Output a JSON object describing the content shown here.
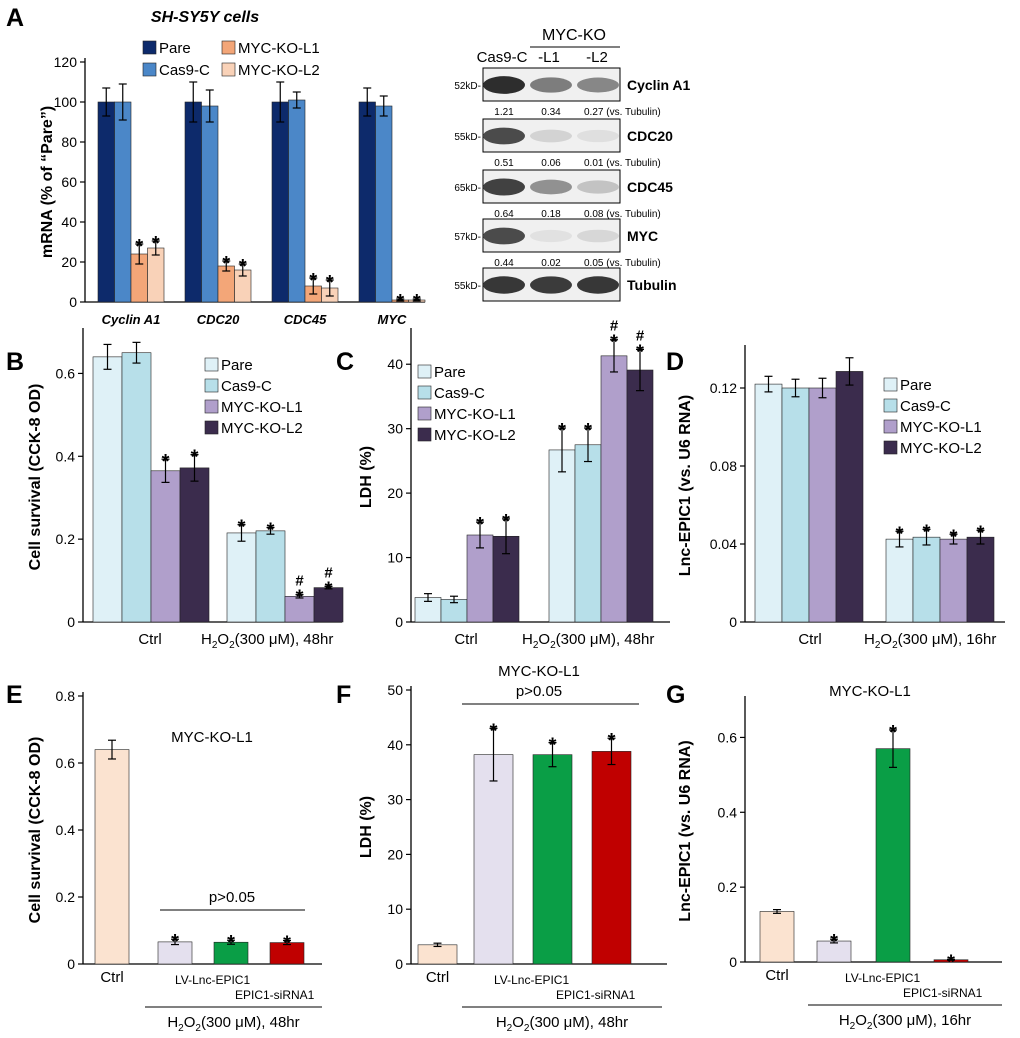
{
  "colors": {
    "pare_dark": "#0d2a6b",
    "cas9_blue": "#4b87c8",
    "ko_l1_orange": "#f3a678",
    "ko_l2_peach": "#f9d2b8",
    "pare_light": "#dff1f7",
    "cas9_light": "#b7dfe9",
    "ko_l1_purple": "#b09fcb",
    "ko_l2_darkpurple": "#3b2c4d",
    "ctrl_peach": "#fbe3d0",
    "lavender": "#e4e0ee",
    "green": "#0a9e46",
    "red": "#c00000",
    "label_red": "#cc1111",
    "label_green": "#13a040"
  },
  "chart_data": [
    {
      "panel": "A",
      "type": "bar",
      "title": "SH-SY5Y cells",
      "ylabel": "mRNA (% of “Pare”)",
      "ylim": [
        0,
        120
      ],
      "yticks": [
        0,
        20,
        40,
        60,
        80,
        100,
        120
      ],
      "categories": [
        "Cyclin A1",
        "CDC20",
        "CDC45",
        "MYC"
      ],
      "series": [
        {
          "name": "Pare",
          "values": [
            100,
            100,
            100,
            100
          ],
          "errors": [
            7,
            10,
            10,
            7
          ]
        },
        {
          "name": "Cas9-C",
          "values": [
            100,
            98,
            101,
            98
          ],
          "errors": [
            9,
            8,
            4,
            5
          ]
        },
        {
          "name": "MYC-KO-L1",
          "values": [
            24,
            18,
            8,
            1
          ],
          "errors": [
            5,
            2.5,
            4,
            0.5
          ]
        },
        {
          "name": "MYC-KO-L2",
          "values": [
            27,
            16,
            7,
            1
          ],
          "errors": [
            3.5,
            3,
            4,
            0.5
          ]
        }
      ],
      "star_marker": "*"
    },
    {
      "panel": "B",
      "type": "bar",
      "ylabel": "Cell survival (CCK-8 OD)",
      "ylim": [
        0,
        0.7
      ],
      "yticks": [
        0,
        0.2,
        0.4,
        0.6
      ],
      "ytick_labels": [
        "0",
        "0.2",
        "0.4",
        "0.6"
      ],
      "groups": [
        "Ctrl",
        "H2O2(300 μM), 48hr"
      ],
      "series": [
        {
          "name": "Pare",
          "values": [
            0.64,
            0.215
          ],
          "errors": [
            0.03,
            0.02
          ]
        },
        {
          "name": "Cas9-C",
          "values": [
            0.65,
            0.22
          ],
          "errors": [
            0.025,
            0.008
          ]
        },
        {
          "name": "MYC-KO-L1",
          "values": [
            0.365,
            0.062
          ],
          "errors": [
            0.028,
            0.004
          ]
        },
        {
          "name": "MYC-KO-L2",
          "values": [
            0.372,
            0.083
          ],
          "errors": [
            0.032,
            0.003
          ]
        }
      ],
      "star_marker": "*",
      "hash_marker": "#"
    },
    {
      "panel": "C",
      "type": "bar",
      "ylabel": "LDH (%)",
      "ylim": [
        0,
        45
      ],
      "yticks": [
        0,
        10,
        20,
        30,
        40
      ],
      "ytick_labels": [
        "0",
        "10",
        "20",
        "30",
        "40"
      ],
      "groups": [
        "Ctrl",
        "H2O2(300 μM), 48hr"
      ],
      "series": [
        {
          "name": "Pare",
          "values": [
            3.8,
            26.7
          ],
          "errors": [
            0.6,
            3.4
          ]
        },
        {
          "name": "Cas9-C",
          "values": [
            3.5,
            27.5
          ],
          "errors": [
            0.5,
            2.6
          ]
        },
        {
          "name": "MYC-KO-L1",
          "values": [
            13.5,
            41.3
          ],
          "errors": [
            2.0,
            2.5
          ]
        },
        {
          "name": "MYC-KO-L2",
          "values": [
            13.3,
            39.1
          ],
          "errors": [
            2.7,
            3.2
          ]
        }
      ],
      "star_marker": "*",
      "hash_marker": "#"
    },
    {
      "panel": "D",
      "type": "bar",
      "ylabel": "Lnc-EPIC1 (vs. U6 RNA)",
      "ylim": [
        0,
        0.14
      ],
      "yticks": [
        0,
        0.04,
        0.08,
        0.12
      ],
      "ytick_labels": [
        "0",
        "0.04",
        "0.08",
        "0.12"
      ],
      "groups": [
        "Ctrl",
        "H2O2(300 μM), 16hr"
      ],
      "series": [
        {
          "name": "Pare",
          "values": [
            0.122,
            0.0425
          ],
          "errors": [
            0.004,
            0.004
          ]
        },
        {
          "name": "Cas9-C",
          "values": [
            0.12,
            0.0435
          ],
          "errors": [
            0.0045,
            0.004
          ]
        },
        {
          "name": "MYC-KO-L1",
          "values": [
            0.12,
            0.0425
          ],
          "errors": [
            0.005,
            0.0025
          ]
        },
        {
          "name": "MYC-KO-L2",
          "values": [
            0.1285,
            0.0435
          ],
          "errors": [
            0.007,
            0.0035
          ]
        }
      ],
      "star_marker": "*"
    },
    {
      "panel": "E",
      "type": "bar",
      "title": "MYC-KO-L1",
      "ylabel": "Cell survival (CCK-8 OD)",
      "ylim": [
        0,
        0.8
      ],
      "yticks": [
        0,
        0.2,
        0.4,
        0.6,
        0.8
      ],
      "ytick_labels": [
        "0",
        "0.2",
        "0.4",
        "0.6",
        "0.8"
      ],
      "categories": [
        "Ctrl",
        "H2O2",
        "LV-Lnc-EPIC1",
        "EPIC1-siRNA1"
      ],
      "values": [
        0.64,
        0.066,
        0.065,
        0.064
      ],
      "errors": [
        0.028,
        0.008,
        0.006,
        0.006
      ],
      "stars": [
        false,
        true,
        true,
        true
      ],
      "comparison": "p>0.05",
      "treatment": "H2O2(300 μM), 48hr"
    },
    {
      "panel": "F",
      "type": "bar",
      "title": "MYC-KO-L1",
      "ylabel": "LDH (%)",
      "ylim": [
        0,
        50
      ],
      "yticks": [
        0,
        10,
        20,
        30,
        40,
        50
      ],
      "ytick_labels": [
        "0",
        "10",
        "20",
        "30",
        "40",
        "50"
      ],
      "categories": [
        "Ctrl",
        "H2O2",
        "LV-Lnc-EPIC1",
        "EPIC1-siRNA1"
      ],
      "values": [
        3.5,
        38.2,
        38.2,
        38.8
      ],
      "errors": [
        0.3,
        4.8,
        2.2,
        2.4
      ],
      "stars": [
        false,
        true,
        true,
        true
      ],
      "comparison": "p>0.05",
      "treatment": "H2O2(300 μM), 48hr"
    },
    {
      "panel": "G",
      "type": "bar",
      "title": "MYC-KO-L1",
      "ylabel": "Lnc-EPIC1 (vs. U6 RNA)",
      "ylim": [
        0,
        0.7
      ],
      "yticks": [
        0,
        0.2,
        0.4,
        0.6
      ],
      "ytick_labels": [
        "0",
        "0.2",
        "0.4",
        "0.6"
      ],
      "categories": [
        "Ctrl",
        "H2O2",
        "LV-Lnc-EPIC1",
        "EPIC1-siRNA1"
      ],
      "values": [
        0.135,
        0.056,
        0.57,
        0.006
      ],
      "errors": [
        0.005,
        0.005,
        0.05,
        0.001
      ],
      "stars": [
        false,
        true,
        true,
        true
      ],
      "treatment": "H2O2(300 μM), 16hr"
    }
  ],
  "blot": {
    "header": "MYC-KO",
    "lanes": [
      "Cas9-C",
      "-L1",
      "-L2"
    ],
    "tubulin_suffix": "(vs. Tubulin)",
    "rows": [
      {
        "name": "Cyclin A1",
        "kd": "52kD-",
        "quant": [
          "1.21",
          "0.34",
          "0.27"
        ],
        "intensity": [
          0.95,
          0.55,
          0.5
        ]
      },
      {
        "name": "CDC20",
        "kd": "55kD-",
        "quant": [
          "0.51",
          "0.06",
          "0.01"
        ],
        "intensity": [
          0.8,
          0.12,
          0.06
        ]
      },
      {
        "name": "CDC45",
        "kd": "65kD-",
        "quant": [
          "0.64",
          "0.18",
          "0.08"
        ],
        "intensity": [
          0.85,
          0.45,
          0.2
        ]
      },
      {
        "name": "MYC",
        "kd": "57kD-",
        "quant": [
          "0.44",
          "0.02",
          "0.05"
        ],
        "intensity": [
          0.8,
          0.05,
          0.1
        ]
      },
      {
        "name": "Tubulin",
        "kd": "55kD-",
        "quant": [],
        "intensity": [
          0.9,
          0.88,
          0.9
        ]
      }
    ]
  },
  "panel_labels": [
    "A",
    "B",
    "C",
    "D",
    "E",
    "F",
    "G"
  ],
  "treatment_labels": {
    "lv": "LV-Lnc-EPIC1",
    "si": "EPIC1-siRNA1"
  }
}
